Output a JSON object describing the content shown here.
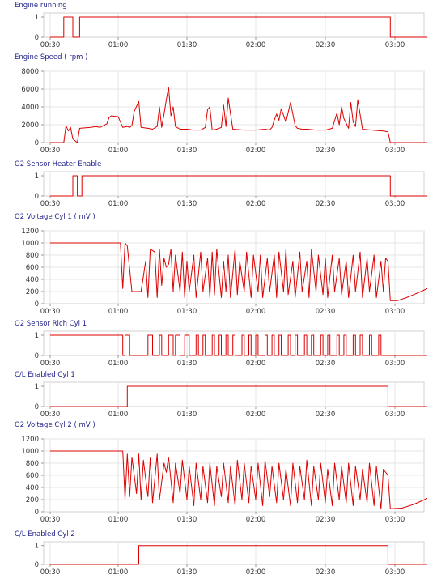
{
  "chart_data": [
    {
      "type": "line",
      "title": "Engine running",
      "x_ticks": [
        "00:30",
        "01:00",
        "01:30",
        "02:00",
        "02:30",
        "03:00"
      ],
      "yticks": [
        0,
        1
      ],
      "ylim": [
        0,
        1
      ],
      "series": [
        {
          "color": "#dd0000",
          "step": true,
          "x": [
            "00:30",
            "00:36",
            "00:39",
            "00:40",
            "00:43",
            "02:57",
            "02:58",
            "03:14"
          ],
          "values": [
            0,
            1,
            1,
            0,
            1,
            1,
            0,
            0
          ]
        }
      ]
    },
    {
      "type": "line",
      "title": "Engine Speed ( rpm )",
      "x_ticks": [
        "00:30",
        "01:00",
        "01:30",
        "02:00",
        "02:30",
        "03:00"
      ],
      "yticks": [
        0,
        2000,
        4000,
        6000,
        8000
      ],
      "ylim": [
        0,
        8000
      ],
      "series": [
        {
          "color": "#dd0000",
          "x": [
            "00:30",
            "00:36",
            "00:37",
            "00:38",
            "00:39",
            "00:40",
            "00:42",
            "00:43",
            "00:48",
            "00:50",
            "00:52",
            "00:55",
            "00:56",
            "00:57",
            "01:00",
            "01:02",
            "01:04",
            "01:05",
            "01:06",
            "01:07",
            "01:09",
            "01:10",
            "01:13",
            "01:15",
            "01:17",
            "01:18",
            "01:19",
            "01:20",
            "01:21",
            "01:22",
            "01:23",
            "01:24",
            "01:25",
            "01:27",
            "01:30",
            "01:33",
            "01:36",
            "01:38",
            "01:39",
            "01:40",
            "01:41",
            "01:43",
            "01:45",
            "01:46",
            "01:47",
            "01:48",
            "01:50",
            "01:55",
            "02:00",
            "02:04",
            "02:06",
            "02:07",
            "02:08",
            "02:09",
            "02:10",
            "02:11",
            "02:13",
            "02:15",
            "02:17",
            "02:18",
            "02:20",
            "02:22",
            "02:26",
            "02:30",
            "02:33",
            "02:35",
            "02:36",
            "02:37",
            "02:38",
            "02:40",
            "02:41",
            "02:42",
            "02:43",
            "02:44",
            "02:46",
            "02:50",
            "02:55",
            "02:57",
            "02:58",
            "03:14"
          ],
          "values": [
            0,
            0,
            1900,
            1300,
            1700,
            400,
            0,
            1600,
            1700,
            1800,
            1700,
            2100,
            2800,
            3000,
            2900,
            1700,
            1800,
            1700,
            1900,
            3500,
            4600,
            1700,
            1600,
            1500,
            1800,
            4000,
            1700,
            3200,
            4800,
            6200,
            3000,
            4000,
            1800,
            1500,
            1500,
            1400,
            1400,
            1700,
            3700,
            4000,
            1400,
            1500,
            1700,
            4200,
            1800,
            5000,
            1500,
            1400,
            1400,
            1500,
            1400,
            1700,
            2500,
            3200,
            2500,
            3800,
            2300,
            4500,
            1900,
            1600,
            1500,
            1500,
            1400,
            1400,
            1600,
            3300,
            2000,
            4000,
            2700,
            1600,
            4500,
            2300,
            1800,
            4800,
            1500,
            1400,
            1300,
            1200,
            0,
            0
          ]
        }
      ]
    },
    {
      "type": "line",
      "title": "O2 Sensor Heater Enable",
      "x_ticks": [
        "00:30",
        "01:00",
        "01:30",
        "02:00",
        "02:30",
        "03:00"
      ],
      "yticks": [
        0,
        1
      ],
      "ylim": [
        0,
        1
      ],
      "series": [
        {
          "color": "#dd0000",
          "step": true,
          "x": [
            "00:30",
            "00:40",
            "00:42",
            "00:44",
            "02:57",
            "02:58",
            "03:14"
          ],
          "values": [
            0,
            1,
            0,
            1,
            1,
            0,
            0
          ]
        }
      ]
    },
    {
      "type": "line",
      "title": "O2 Voltage Cyl 1 ( mV )",
      "x_ticks": [
        "00:30",
        "01:00",
        "01:30",
        "02:00",
        "02:30",
        "03:00"
      ],
      "yticks": [
        0,
        200,
        400,
        600,
        800,
        1000,
        1200
      ],
      "ylim": [
        0,
        1200
      ],
      "series": [
        {
          "color": "#dd0000",
          "x": [
            "00:30",
            "01:01",
            "01:02",
            "01:03",
            "01:04",
            "01:06",
            "01:07",
            "01:10",
            "01:12",
            "01:13",
            "01:14",
            "01:16",
            "01:17",
            "01:18",
            "01:19",
            "01:20",
            "01:21",
            "01:22",
            "01:23",
            "01:24",
            "01:25",
            "01:27",
            "01:28",
            "01:29",
            "01:30",
            "01:31",
            "01:33",
            "01:34",
            "01:36",
            "01:37",
            "01:39",
            "01:40",
            "01:41",
            "01:42",
            "01:43",
            "01:45",
            "01:46",
            "01:47",
            "01:48",
            "01:49",
            "01:51",
            "01:52",
            "01:53",
            "01:55",
            "01:56",
            "01:58",
            "01:59",
            "02:01",
            "02:02",
            "02:03",
            "02:05",
            "02:06",
            "02:08",
            "02:09",
            "02:10",
            "02:12",
            "02:13",
            "02:14",
            "02:16",
            "02:17",
            "02:19",
            "02:20",
            "02:22",
            "02:23",
            "02:24",
            "02:26",
            "02:27",
            "02:29",
            "02:30",
            "02:31",
            "02:33",
            "02:34",
            "02:36",
            "02:37",
            "02:39",
            "02:40",
            "02:42",
            "02:43",
            "02:45",
            "02:46",
            "02:48",
            "02:49",
            "02:51",
            "02:52",
            "02:54",
            "02:55",
            "02:56",
            "02:57",
            "02:58",
            "03:01",
            "03:05",
            "03:10",
            "03:14"
          ],
          "values": [
            1000,
            1000,
            250,
            1000,
            950,
            200,
            200,
            200,
            700,
            100,
            900,
            850,
            100,
            900,
            300,
            750,
            600,
            650,
            900,
            200,
            800,
            200,
            850,
            100,
            700,
            200,
            800,
            100,
            850,
            200,
            750,
            100,
            850,
            150,
            900,
            100,
            700,
            200,
            800,
            100,
            900,
            150,
            700,
            200,
            850,
            100,
            800,
            200,
            800,
            100,
            750,
            200,
            800,
            100,
            850,
            200,
            900,
            150,
            700,
            100,
            850,
            200,
            700,
            100,
            900,
            200,
            800,
            150,
            750,
            100,
            800,
            200,
            750,
            150,
            700,
            100,
            800,
            200,
            850,
            100,
            750,
            200,
            800,
            100,
            700,
            200,
            750,
            700,
            50,
            50,
            100,
            180,
            250
          ]
        }
      ]
    },
    {
      "type": "line",
      "title": "O2 Sensor Rich Cyl 1",
      "x_ticks": [
        "00:30",
        "01:00",
        "01:30",
        "02:00",
        "02:30",
        "03:00"
      ],
      "yticks": [
        0,
        1
      ],
      "ylim": [
        0,
        1
      ],
      "series": [
        {
          "color": "#dd0000",
          "step": true,
          "x": [
            "00:30",
            "01:02",
            "01:03",
            "01:05",
            "01:09",
            "01:13",
            "01:15",
            "01:18",
            "01:19",
            "01:22",
            "01:24",
            "01:25",
            "01:27",
            "01:29",
            "01:31",
            "01:34",
            "01:35",
            "01:37",
            "01:38",
            "01:41",
            "01:42",
            "01:44",
            "01:45",
            "01:47",
            "01:48",
            "01:50",
            "01:51",
            "01:54",
            "01:55",
            "01:57",
            "01:58",
            "02:00",
            "02:01",
            "02:04",
            "02:05",
            "02:07",
            "02:08",
            "02:10",
            "02:11",
            "02:14",
            "02:15",
            "02:17",
            "02:18",
            "02:21",
            "02:22",
            "02:24",
            "02:25",
            "02:28",
            "02:29",
            "02:31",
            "02:32",
            "02:35",
            "02:36",
            "02:38",
            "02:39",
            "02:42",
            "02:43",
            "02:45",
            "02:46",
            "02:49",
            "02:50",
            "02:53",
            "02:54",
            "02:57",
            "03:14"
          ],
          "values": [
            1,
            0,
            1,
            0,
            0,
            1,
            0,
            1,
            0,
            1,
            0,
            1,
            0,
            1,
            0,
            1,
            0,
            1,
            0,
            1,
            0,
            1,
            0,
            1,
            0,
            1,
            0,
            1,
            0,
            1,
            0,
            1,
            0,
            1,
            0,
            1,
            0,
            1,
            0,
            1,
            0,
            1,
            0,
            1,
            0,
            1,
            0,
            1,
            0,
            1,
            0,
            1,
            0,
            1,
            0,
            1,
            0,
            1,
            0,
            1,
            0,
            1,
            0,
            0,
            0
          ]
        }
      ]
    },
    {
      "type": "line",
      "title": "C/L Enabled Cyl 1",
      "x_ticks": [
        "00:30",
        "01:00",
        "01:30",
        "02:00",
        "02:30",
        "03:00"
      ],
      "yticks": [
        0,
        1
      ],
      "ylim": [
        0,
        1
      ],
      "series": [
        {
          "color": "#dd0000",
          "step": true,
          "x": [
            "00:30",
            "01:04",
            "02:57",
            "03:14"
          ],
          "values": [
            0,
            1,
            0,
            0
          ]
        }
      ]
    },
    {
      "type": "line",
      "title": "O2 Voltage Cyl 2 ( mV )",
      "x_ticks": [
        "00:30",
        "01:00",
        "01:30",
        "02:00",
        "02:30",
        "03:00"
      ],
      "yticks": [
        0,
        200,
        400,
        600,
        800,
        1000,
        1200
      ],
      "ylim": [
        0,
        1200
      ],
      "series": [
        {
          "color": "#dd0000",
          "x": [
            "00:30",
            "01:02",
            "01:03",
            "01:04",
            "01:05",
            "01:06",
            "01:08",
            "01:09",
            "01:10",
            "01:11",
            "01:13",
            "01:14",
            "01:15",
            "01:17",
            "01:18",
            "01:20",
            "01:21",
            "01:22",
            "01:24",
            "01:25",
            "01:27",
            "01:28",
            "01:30",
            "01:31",
            "01:33",
            "01:34",
            "01:36",
            "01:37",
            "01:39",
            "01:40",
            "01:42",
            "01:43",
            "01:45",
            "01:46",
            "01:48",
            "01:49",
            "01:51",
            "01:52",
            "01:54",
            "01:55",
            "01:57",
            "01:58",
            "02:00",
            "02:01",
            "02:03",
            "02:04",
            "02:06",
            "02:07",
            "02:09",
            "02:10",
            "02:12",
            "02:13",
            "02:15",
            "02:16",
            "02:18",
            "02:19",
            "02:21",
            "02:22",
            "02:24",
            "02:25",
            "02:27",
            "02:28",
            "02:30",
            "02:31",
            "02:33",
            "02:34",
            "02:36",
            "02:37",
            "02:39",
            "02:40",
            "02:42",
            "02:43",
            "02:45",
            "02:46",
            "02:48",
            "02:49",
            "02:51",
            "02:52",
            "02:54",
            "02:55",
            "02:57",
            "02:58",
            "03:03",
            "03:08",
            "03:14"
          ],
          "values": [
            1000,
            1000,
            200,
            950,
            250,
            900,
            300,
            950,
            200,
            850,
            250,
            900,
            150,
            950,
            200,
            800,
            650,
            900,
            150,
            800,
            300,
            850,
            200,
            750,
            100,
            800,
            200,
            750,
            150,
            800,
            100,
            750,
            250,
            800,
            150,
            750,
            100,
            850,
            200,
            800,
            150,
            750,
            200,
            800,
            100,
            850,
            250,
            750,
            150,
            800,
            200,
            700,
            100,
            800,
            150,
            750,
            200,
            850,
            100,
            750,
            200,
            800,
            150,
            700,
            100,
            800,
            200,
            750,
            150,
            800,
            100,
            750,
            200,
            700,
            150,
            800,
            100,
            750,
            50,
            700,
            600,
            50,
            60,
            120,
            220
          ]
        }
      ]
    },
    {
      "type": "line",
      "title": "C/L Enabled Cyl 2",
      "x_ticks": [
        "00:30",
        "01:00",
        "01:30",
        "02:00",
        "02:30",
        "03:00"
      ],
      "yticks": [
        0,
        1
      ],
      "ylim": [
        0,
        1
      ],
      "series": [
        {
          "color": "#dd0000",
          "step": true,
          "x": [
            "00:30",
            "01:09",
            "02:57",
            "03:14"
          ],
          "values": [
            0,
            1,
            0,
            0
          ]
        }
      ]
    }
  ]
}
